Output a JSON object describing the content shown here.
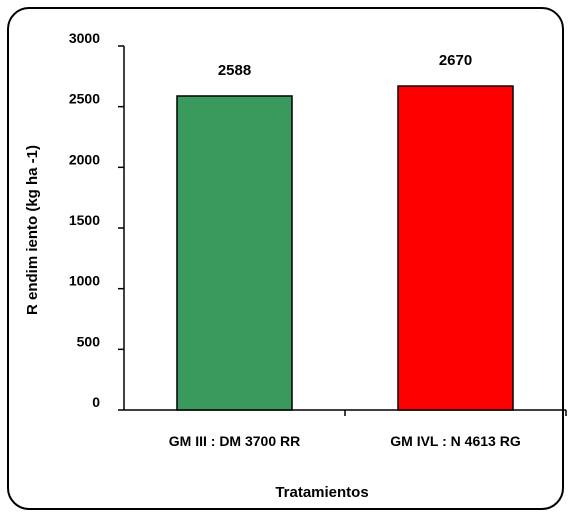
{
  "chart_data": {
    "type": "bar",
    "categories": [
      "GM III : DM 3700 RR",
      "GM IVL : N 4613 RG"
    ],
    "values": [
      2588,
      2670
    ],
    "data_labels": [
      "2588",
      "2670"
    ],
    "bar_colors": [
      "#3a9a5e",
      "#ff0000"
    ],
    "title": "",
    "xlabel": "Tratamientos",
    "ylabel": "R endim iento (kg ha -1)",
    "ylim": [
      0,
      3000
    ],
    "yticks": [
      0,
      500,
      1000,
      1500,
      2000,
      2500,
      3000
    ],
    "ytick_labels": [
      "0",
      "500",
      "1000",
      "1500",
      "2000",
      "2500",
      "3000"
    ],
    "grid": false,
    "legend": "none"
  }
}
